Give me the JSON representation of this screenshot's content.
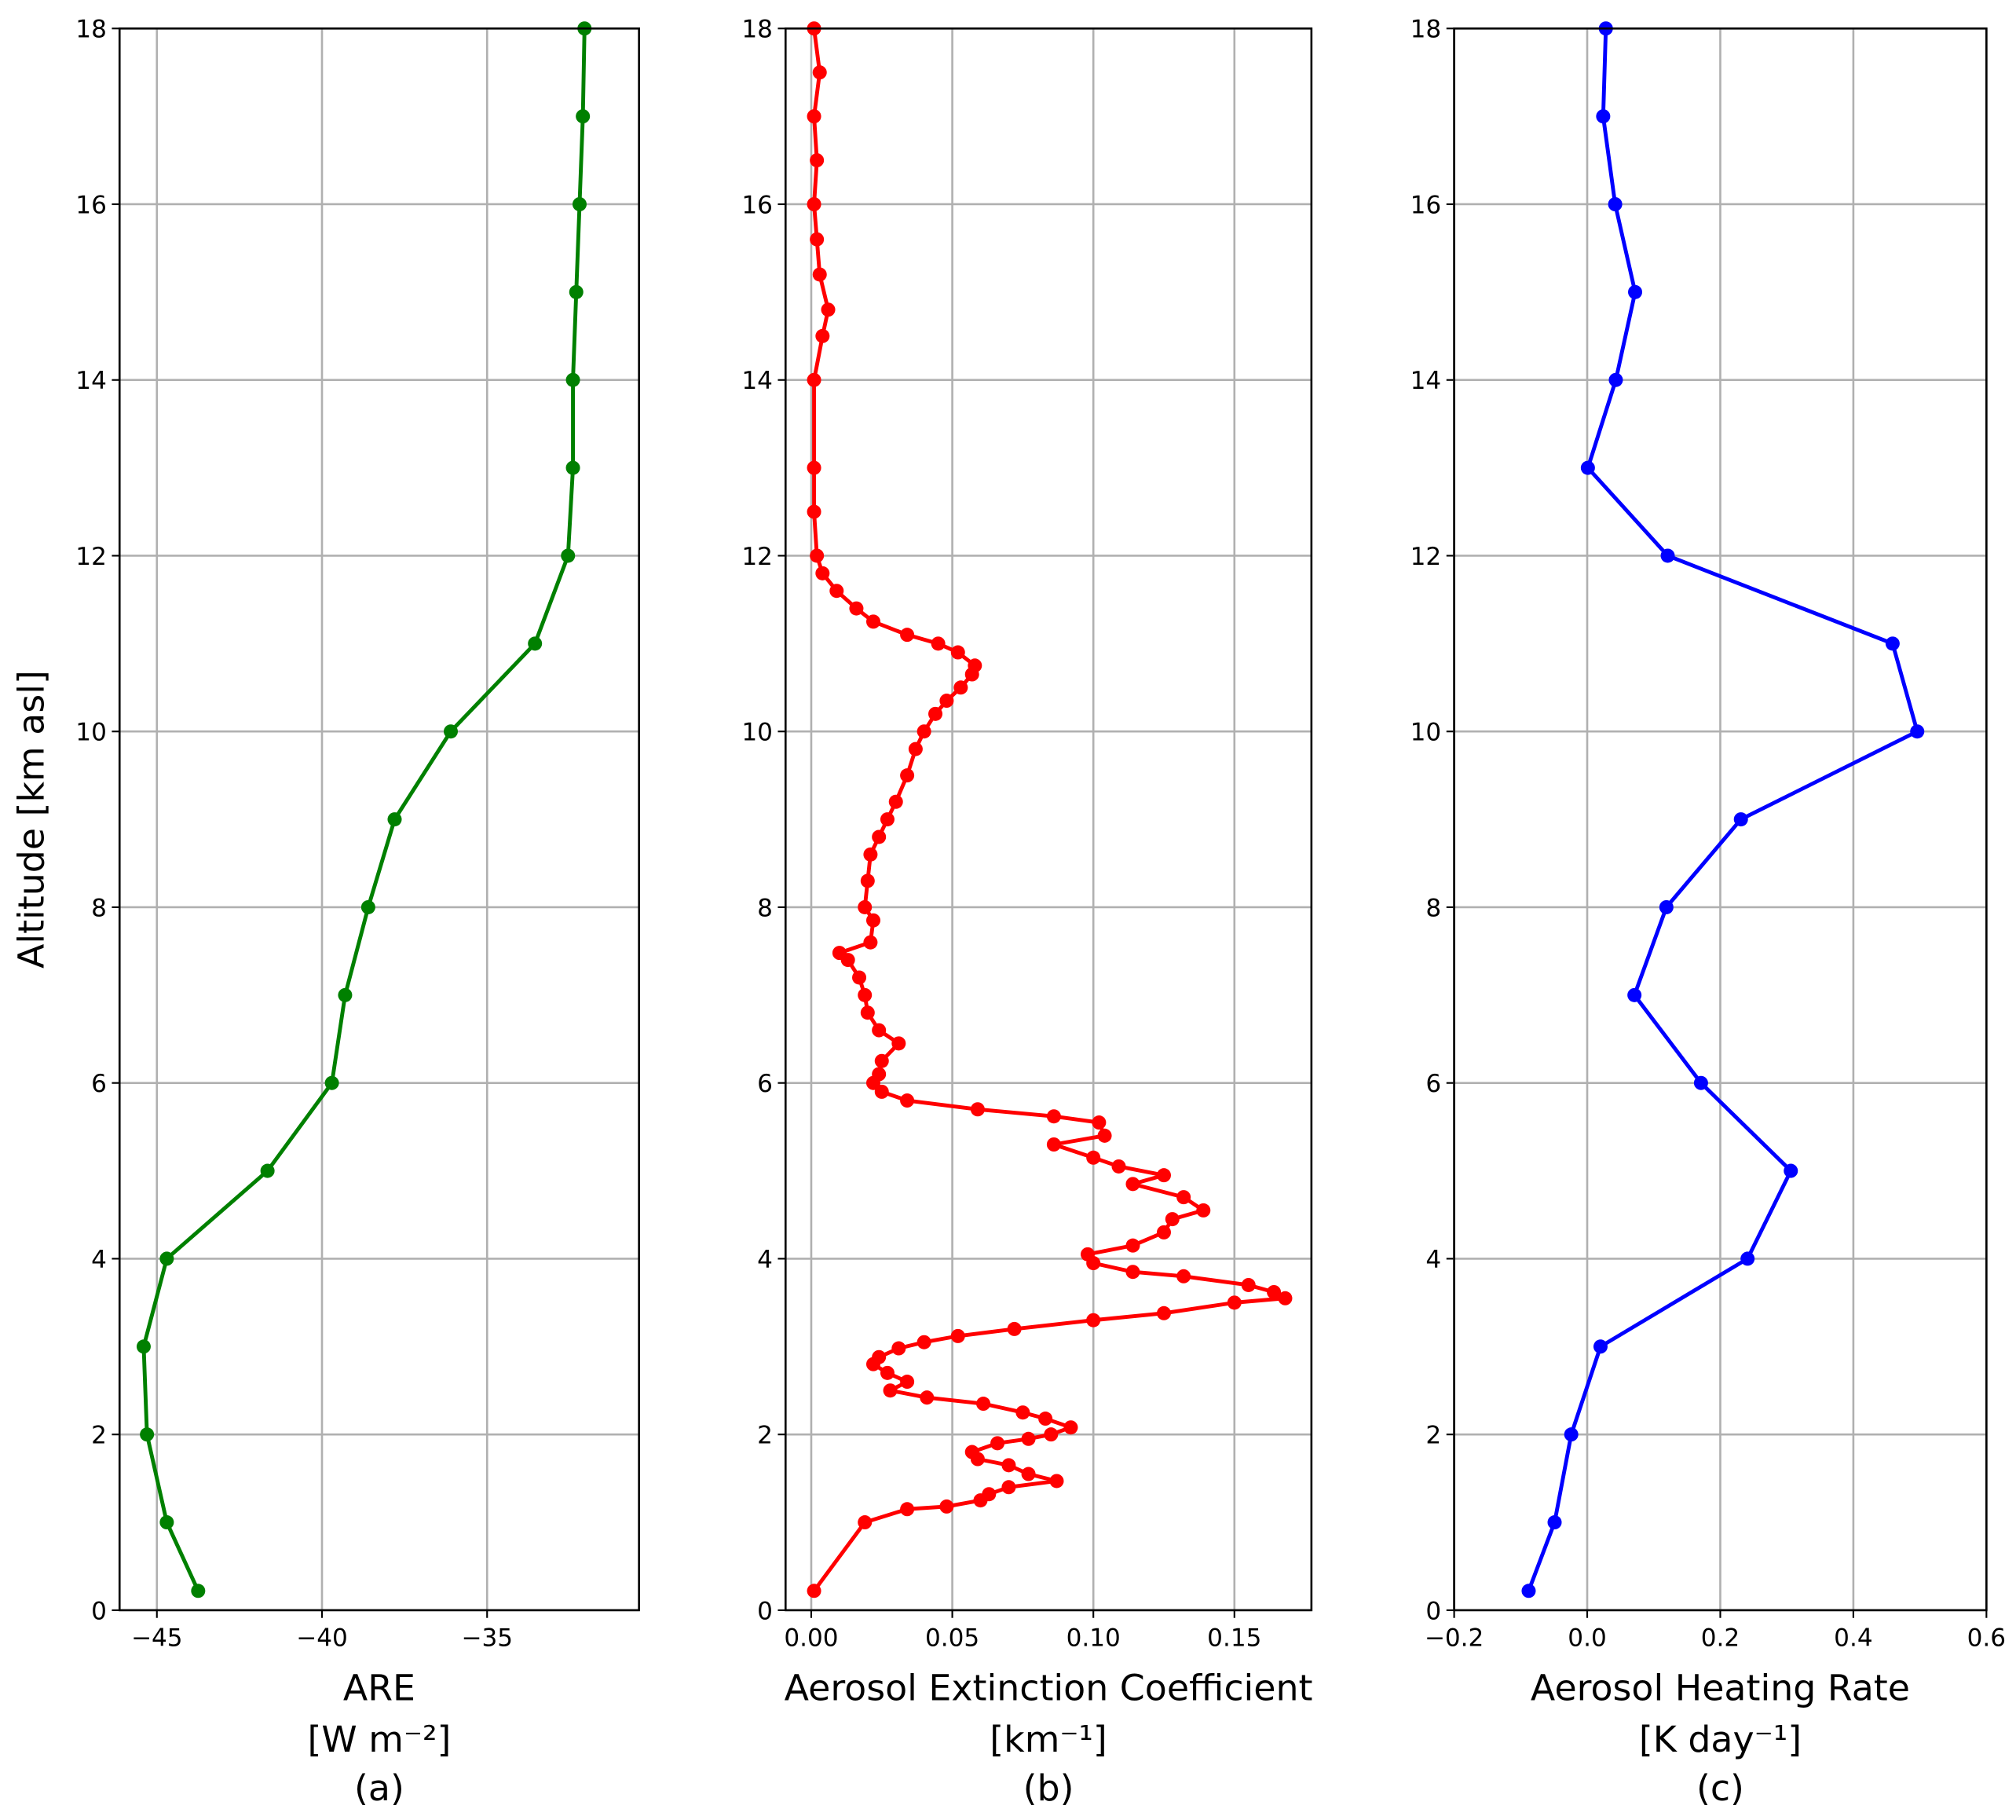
{
  "chart_data": [
    {
      "type": "line",
      "color": "#008000",
      "grid": true,
      "xlabel": "ARE",
      "xunit": "[W m⁻²]",
      "panel_label": "(a)",
      "ylabel": "Altitude [km asl]",
      "xlim": [
        -46.13,
        -30.4
      ],
      "ylim": [
        0,
        18
      ],
      "xticks": [
        {
          "value": -45,
          "label": "−45"
        },
        {
          "value": -40,
          "label": "−40"
        },
        {
          "value": -35,
          "label": "−35"
        }
      ],
      "yticks": [
        0,
        2,
        4,
        6,
        8,
        10,
        12,
        14,
        16,
        18
      ],
      "x": [
        -43.75,
        -44.7,
        -45.3,
        -45.4,
        -44.7,
        -41.65,
        -39.7,
        -39.3,
        -38.6,
        -37.8,
        -36.1,
        -33.55,
        -32.55,
        -32.4,
        -32.4,
        -32.3,
        -32.2,
        -32.1,
        -32.05
      ],
      "y": [
        0.22,
        1,
        2,
        3,
        4,
        5,
        6,
        7,
        8,
        9,
        10,
        11,
        12,
        13,
        14,
        15,
        16,
        17,
        18
      ]
    },
    {
      "type": "line",
      "color": "#ff0000",
      "grid": true,
      "xlabel": "Aerosol Extinction Coefficient",
      "xunit": "[km⁻¹]",
      "panel_label": "(b)",
      "xlim": [
        -0.0091,
        0.1773
      ],
      "ylim": [
        0,
        18
      ],
      "xticks": [
        {
          "value": 0,
          "label": "0.00"
        },
        {
          "value": 0.05,
          "label": "0.05"
        },
        {
          "value": 0.1,
          "label": "0.10"
        },
        {
          "value": 0.15,
          "label": "0.15"
        }
      ],
      "yticks": [
        0,
        2,
        4,
        6,
        8,
        10,
        12,
        14,
        16,
        18
      ],
      "x": [
        0.001,
        0.019,
        0.034,
        0.048,
        0.06,
        0.063,
        0.07,
        0.087,
        0.077,
        0.07,
        0.059,
        0.057,
        0.066,
        0.077,
        0.085,
        0.092,
        0.083,
        0.075,
        0.061,
        0.041,
        0.028,
        0.034,
        0.027,
        0.022,
        0.024,
        0.031,
        0.04,
        0.052,
        0.072,
        0.1,
        0.125,
        0.15,
        0.168,
        0.164,
        0.155,
        0.132,
        0.114,
        0.1,
        0.098,
        0.114,
        0.125,
        0.128,
        0.139,
        0.132,
        0.114,
        0.125,
        0.109,
        0.1,
        0.086,
        0.104,
        0.102,
        0.086,
        0.059,
        0.034,
        0.025,
        0.022,
        0.024,
        0.025,
        0.031,
        0.024,
        0.02,
        0.019,
        0.017,
        0.013,
        0.01,
        0.021,
        0.022,
        0.019,
        0.02,
        0.021,
        0.024,
        0.027,
        0.03,
        0.034,
        0.037,
        0.04,
        0.044,
        0.048,
        0.053,
        0.057,
        0.058,
        0.052,
        0.045,
        0.034,
        0.022,
        0.016,
        0.009,
        0.004,
        0.002,
        0.001,
        0.001,
        0.001,
        0.004,
        0.006,
        0.003,
        0.002,
        0.001,
        0.002,
        0.001,
        0.003,
        0.001
      ],
      "y": [
        0.22,
        1.0,
        1.15,
        1.18,
        1.25,
        1.32,
        1.4,
        1.47,
        1.55,
        1.65,
        1.72,
        1.8,
        1.9,
        1.95,
        2.0,
        2.08,
        2.18,
        2.25,
        2.35,
        2.42,
        2.5,
        2.6,
        2.7,
        2.8,
        2.88,
        2.98,
        3.05,
        3.12,
        3.2,
        3.3,
        3.38,
        3.5,
        3.55,
        3.62,
        3.7,
        3.8,
        3.85,
        3.95,
        4.05,
        4.15,
        4.3,
        4.45,
        4.55,
        4.7,
        4.85,
        4.95,
        5.05,
        5.15,
        5.3,
        5.4,
        5.55,
        5.62,
        5.7,
        5.8,
        5.9,
        6.0,
        6.1,
        6.25,
        6.45,
        6.6,
        6.8,
        7.0,
        7.2,
        7.4,
        7.48,
        7.6,
        7.85,
        8.0,
        8.3,
        8.6,
        8.8,
        9.0,
        9.2,
        9.5,
        9.8,
        10.0,
        10.2,
        10.35,
        10.5,
        10.65,
        10.75,
        10.9,
        11.0,
        11.1,
        11.25,
        11.4,
        11.6,
        11.8,
        12.0,
        12.5,
        13.0,
        14.0,
        14.5,
        14.8,
        15.2,
        15.6,
        16.0,
        16.5,
        17.0,
        17.5,
        18.0
      ]
    },
    {
      "type": "line",
      "color": "#0000ff",
      "grid": true,
      "xlabel": "Aerosol Heating Rate",
      "xunit": "[K day⁻¹]",
      "panel_label": "(c)",
      "xlim": [
        -0.2,
        0.6
      ],
      "ylim": [
        0,
        18
      ],
      "xticks": [
        {
          "value": -0.2,
          "label": "−0.2"
        },
        {
          "value": 0,
          "label": "0.0"
        },
        0.2,
        0.4,
        0.6
      ],
      "yticks": [
        0,
        2,
        4,
        6,
        8,
        10,
        12,
        14,
        16,
        18
      ],
      "x": [
        -0.088,
        -0.049,
        -0.024,
        0.02,
        0.241,
        0.306,
        0.171,
        0.071,
        0.119,
        0.231,
        0.496,
        0.459,
        0.121,
        0.001,
        0.043,
        0.072,
        0.042,
        0.024,
        0.028
      ],
      "y": [
        0.22,
        1,
        2,
        3,
        4,
        5,
        6,
        7,
        8,
        9,
        10,
        11,
        12,
        13,
        14,
        15,
        16,
        17,
        18
      ]
    }
  ]
}
